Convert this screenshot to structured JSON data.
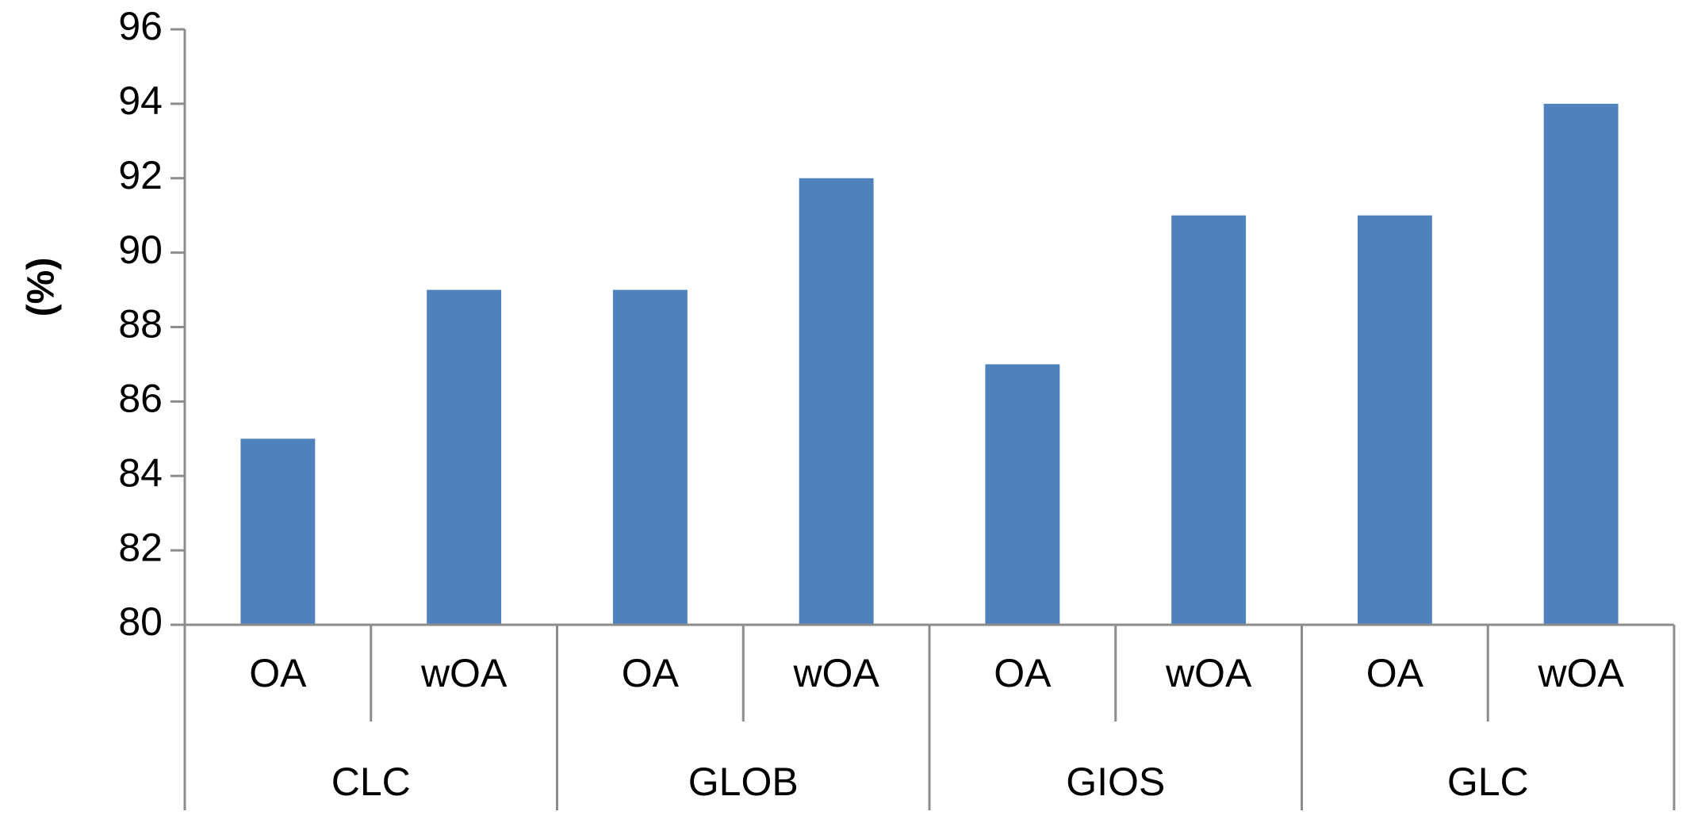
{
  "chart_data": {
    "type": "bar",
    "title": "",
    "xlabel": "",
    "ylabel": "(%)",
    "ylim": [
      80,
      96
    ],
    "yticks": [
      80,
      82,
      84,
      86,
      88,
      90,
      92,
      94,
      96
    ],
    "grid": false,
    "legend": "none",
    "bar_color": "#4f81bd",
    "axis_color": "#8c8c8c",
    "groups": [
      "CLC",
      "GLOB",
      "GIOS",
      "GLC"
    ],
    "categories": [
      "OA",
      "wOA",
      "OA",
      "wOA",
      "OA",
      "wOA",
      "OA",
      "wOA"
    ],
    "values": [
      85,
      89,
      89,
      92,
      87,
      91,
      91,
      94
    ]
  }
}
